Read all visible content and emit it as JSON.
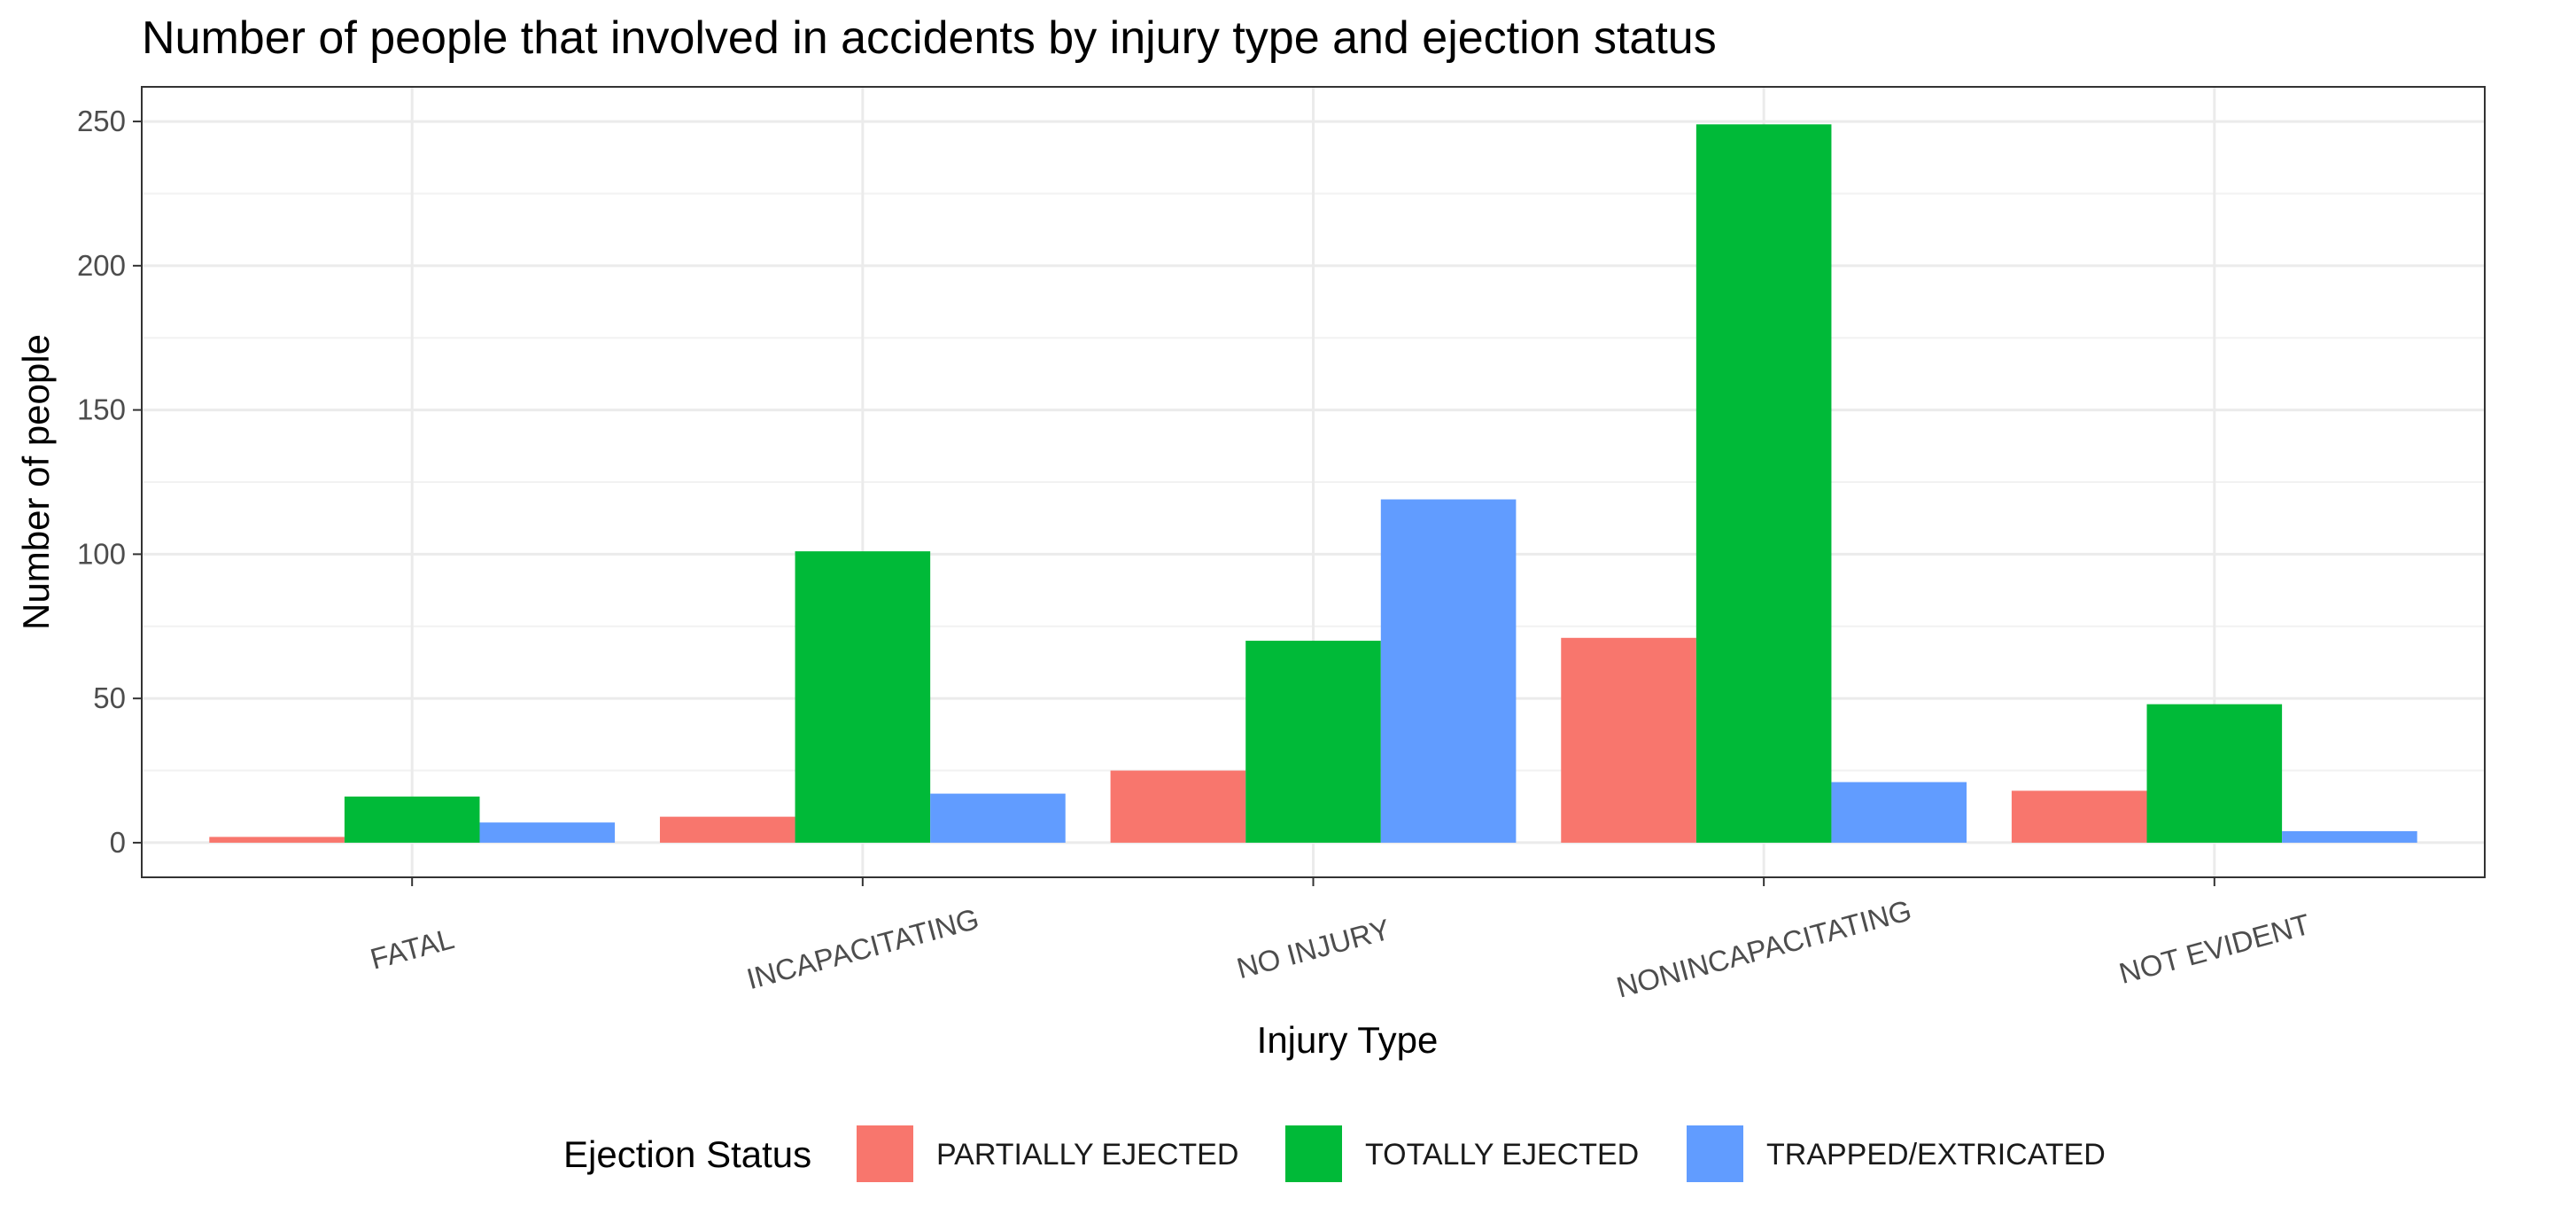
{
  "chart_data": {
    "type": "bar",
    "title": "Number of people that involved in accidents by injury type and ejection status",
    "xlabel": "Injury Type",
    "ylabel": "Number of people",
    "categories": [
      "FATAL",
      "INCAPACITATING",
      "NO INJURY",
      "NONINCAPACITATING",
      "NOT EVIDENT"
    ],
    "series": [
      {
        "name": "PARTIALLY EJECTED",
        "color": "#F8766D",
        "values": [
          2,
          9,
          25,
          71,
          18
        ]
      },
      {
        "name": "TOTALLY EJECTED",
        "color": "#00BA38",
        "values": [
          16,
          101,
          70,
          249,
          48
        ]
      },
      {
        "name": "TRAPPED/EXTRICATED",
        "color": "#619CFF",
        "values": [
          7,
          17,
          119,
          21,
          4
        ]
      }
    ],
    "ylim": [
      -12,
      262
    ],
    "yticks": [
      0,
      50,
      100,
      150,
      200,
      250
    ],
    "ytick_labels": [
      "0",
      "50",
      "100",
      "150",
      "200",
      "250"
    ],
    "grid": true,
    "x_tick_label_rotation": "angled",
    "legend": {
      "title": "Ejection Status",
      "placement": "bottom"
    }
  }
}
